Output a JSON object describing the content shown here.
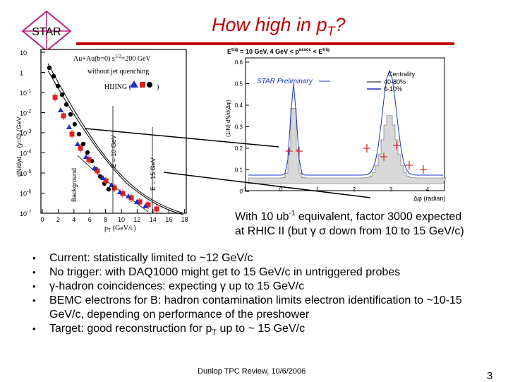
{
  "title": {
    "text": "How high in p",
    "sub": "T",
    "tail": "?"
  },
  "logo": {
    "text": "STAR"
  },
  "left_plot": {
    "top_line1": "Au+Au(b=0)  s",
    "top_line1_sup": "1/2",
    "top_line1_tail": "=200 GeV",
    "top_line2": "without jet quenching",
    "hijing": "HIJING (",
    "hijing_tail": ")",
    "et10": "E",
    "et10_tail": " = 10 GeV",
    "et15_tail": " = 15 GeV",
    "background": "Background",
    "ylabel": "dN/dyd",
    "ylabel_tail": "(y=0) (GeV",
    "xlabel": "p",
    "xlabel_tail": " (GeV/c)",
    "yticks": [
      "10",
      "1",
      "10",
      "10",
      "10",
      "10",
      "10",
      "10",
      "10"
    ],
    "yexp": [
      "",
      "",
      "-1",
      "-2",
      "-3",
      "-4",
      "-5",
      "-6",
      "-7"
    ],
    "xticks": [
      "0",
      "2",
      "4",
      "6",
      "8",
      "10",
      "12",
      "14",
      "16",
      "18"
    ]
  },
  "right_plot": {
    "header_part1": "E",
    "header_trig": "trig",
    "header_part2": " = 10 GeV, 4 GeV < p",
    "header_assoc": "assoc",
    "header_part3": " < E",
    "header_trig2": "trig",
    "preliminary": "STAR Preliminary",
    "centrality": "Centrality",
    "legend_1": "40-80%",
    "legend_2": "0-10%",
    "ylabel": "(1/N",
    "ylabel_tail": ") dN/d(Δφ)",
    "yticks": [
      "0.6",
      "0.5",
      "0.4",
      "0.3",
      "0.2",
      "0.1",
      "0"
    ],
    "xticks": [
      "-1",
      "0",
      "1",
      "2",
      "3",
      "4"
    ],
    "xlabel": "Δφ (radian)"
  },
  "caption": {
    "line1a": "With 10 ub",
    "line1_sup": "-1",
    "line1b": " equivalent, factor 3000 expected",
    "line2": "at RHIC II (but γ σ down from 10 to 15 GeV/c)"
  },
  "bullets": [
    "Current: statistically limited to ~12 GeV/c",
    "No trigger: with DAQ1000 might get to 15 GeV/c in untriggered probes",
    "γ-hadron coincidences: expecting γ up to 15 GeV/c",
    "BEMC electrons for B: hadron contamination limits electron identification to ~10-15 GeV/c, depending on performance of the preshower",
    "Target: good reconstruction for p"
  ],
  "bullet5_sub": "T",
  "bullet5_tail": " up to ~ 15 GeV/c",
  "footer": "Dunlop TPC Review, 10/6/2006",
  "page_number": "3",
  "colors": {
    "title": "#c00000",
    "star_logo": "#c0207a",
    "red_marker": "#e02020",
    "blue_marker": "#1a2fd0"
  }
}
